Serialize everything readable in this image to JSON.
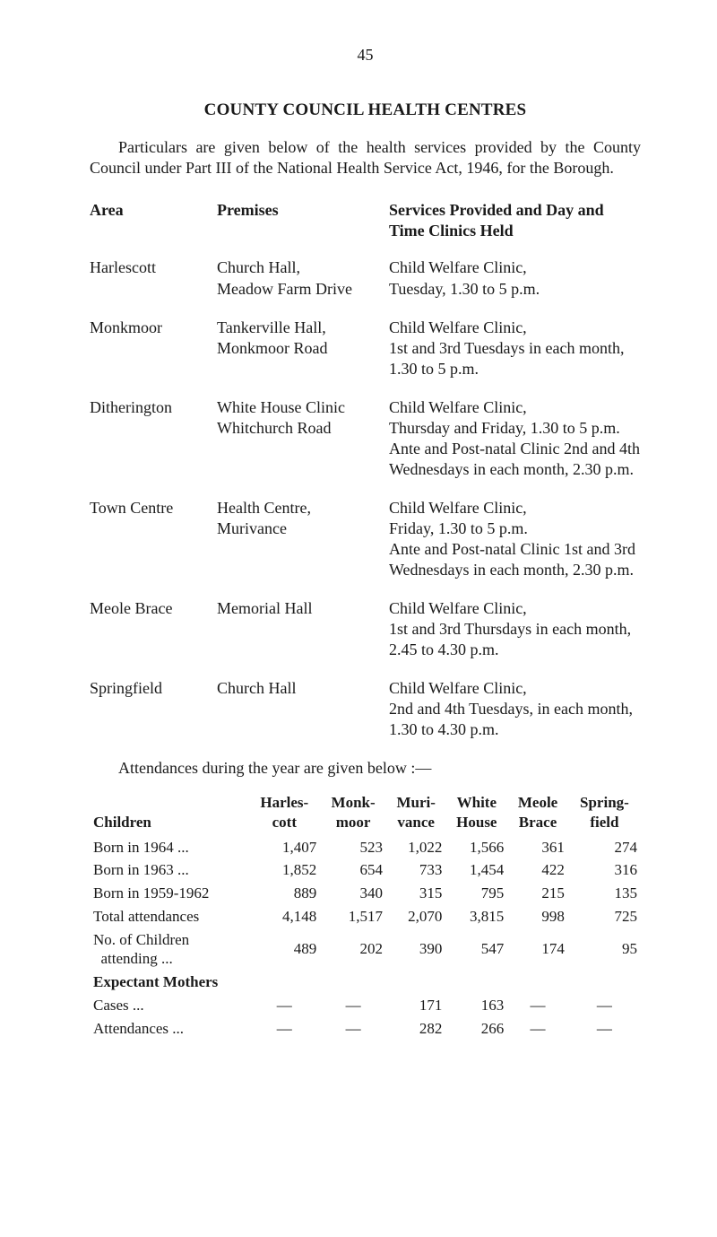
{
  "page_number": "45",
  "title": "COUNTY COUNCIL HEALTH CENTRES",
  "intro": "Particulars are given below of the health services provided by the County Council under Part III of the National Health Service Act, 1946, for the Borough.",
  "columns": {
    "area": "Area",
    "premises": "Premises",
    "services": "Services Provided and Day and Time Clinics Held"
  },
  "centres": [
    {
      "area": "Harlescott",
      "premises": "Church Hall,\nMeadow Farm Drive",
      "services": "Child Welfare Clinic,\nTuesday, 1.30 to 5 p.m."
    },
    {
      "area": "Monkmoor",
      "premises": "Tankerville Hall,\nMonkmoor Road",
      "services": "Child Welfare Clinic,\n1st and 3rd Tuesdays in each month, 1.30 to 5 p.m."
    },
    {
      "area": "Ditherington",
      "premises": "White House Clinic\nWhitchurch Road",
      "services": "Child Welfare Clinic,\nThursday and Friday, 1.30 to 5 p.m.\nAnte and Post-natal Clinic 2nd and 4th Wednesdays in each month, 2.30 p.m."
    },
    {
      "area": "Town Centre",
      "premises": "Health Centre,\nMurivance",
      "services": "Child Welfare Clinic,\nFriday, 1.30 to 5 p.m.\nAnte and Post-natal Clinic 1st and 3rd Wednesdays in each month, 2.30 p.m."
    },
    {
      "area": "Meole Brace",
      "premises": "Memorial Hall",
      "services": "Child Welfare Clinic,\n1st and 3rd Thursdays in each month, 2.45 to 4.30 p.m."
    },
    {
      "area": "Springfield",
      "premises": "Church Hall",
      "services": "Child Welfare Clinic,\n2nd and 4th Tuesdays, in each month, 1.30 to 4.30 p.m."
    }
  ],
  "attend_intro": "Attendances during the year are given below :—",
  "table": {
    "headers": [
      "Children",
      "Harles-\ncott",
      "Monk-\nmoor",
      "Muri-\nvance",
      "White\nHouse",
      "Meole\nBrace",
      "Spring-\nfield"
    ],
    "rows": [
      {
        "label": "Born in 1964 ...",
        "vals": [
          "1,407",
          "523",
          "1,022",
          "1,566",
          "361",
          "274"
        ]
      },
      {
        "label": "Born in 1963 ...",
        "vals": [
          "1,852",
          "654",
          "733",
          "1,454",
          "422",
          "316"
        ]
      },
      {
        "label": "Born in 1959-1962",
        "vals": [
          "889",
          "340",
          "315",
          "795",
          "215",
          "135"
        ]
      },
      {
        "label": "Total attendances",
        "vals": [
          "4,148",
          "1,517",
          "2,070",
          "3,815",
          "998",
          "725"
        ]
      },
      {
        "label": "No. of Children\n  attending ...",
        "vals": [
          "489",
          "202",
          "390",
          "547",
          "174",
          "95"
        ]
      }
    ],
    "section2_label": "Expectant Mothers",
    "rows2": [
      {
        "label": "Cases ...",
        "vals": [
          "—",
          "—",
          "171",
          "163",
          "—",
          "—"
        ]
      },
      {
        "label": "Attendances ...",
        "vals": [
          "—",
          "—",
          "282",
          "266",
          "—",
          "—"
        ]
      }
    ]
  }
}
